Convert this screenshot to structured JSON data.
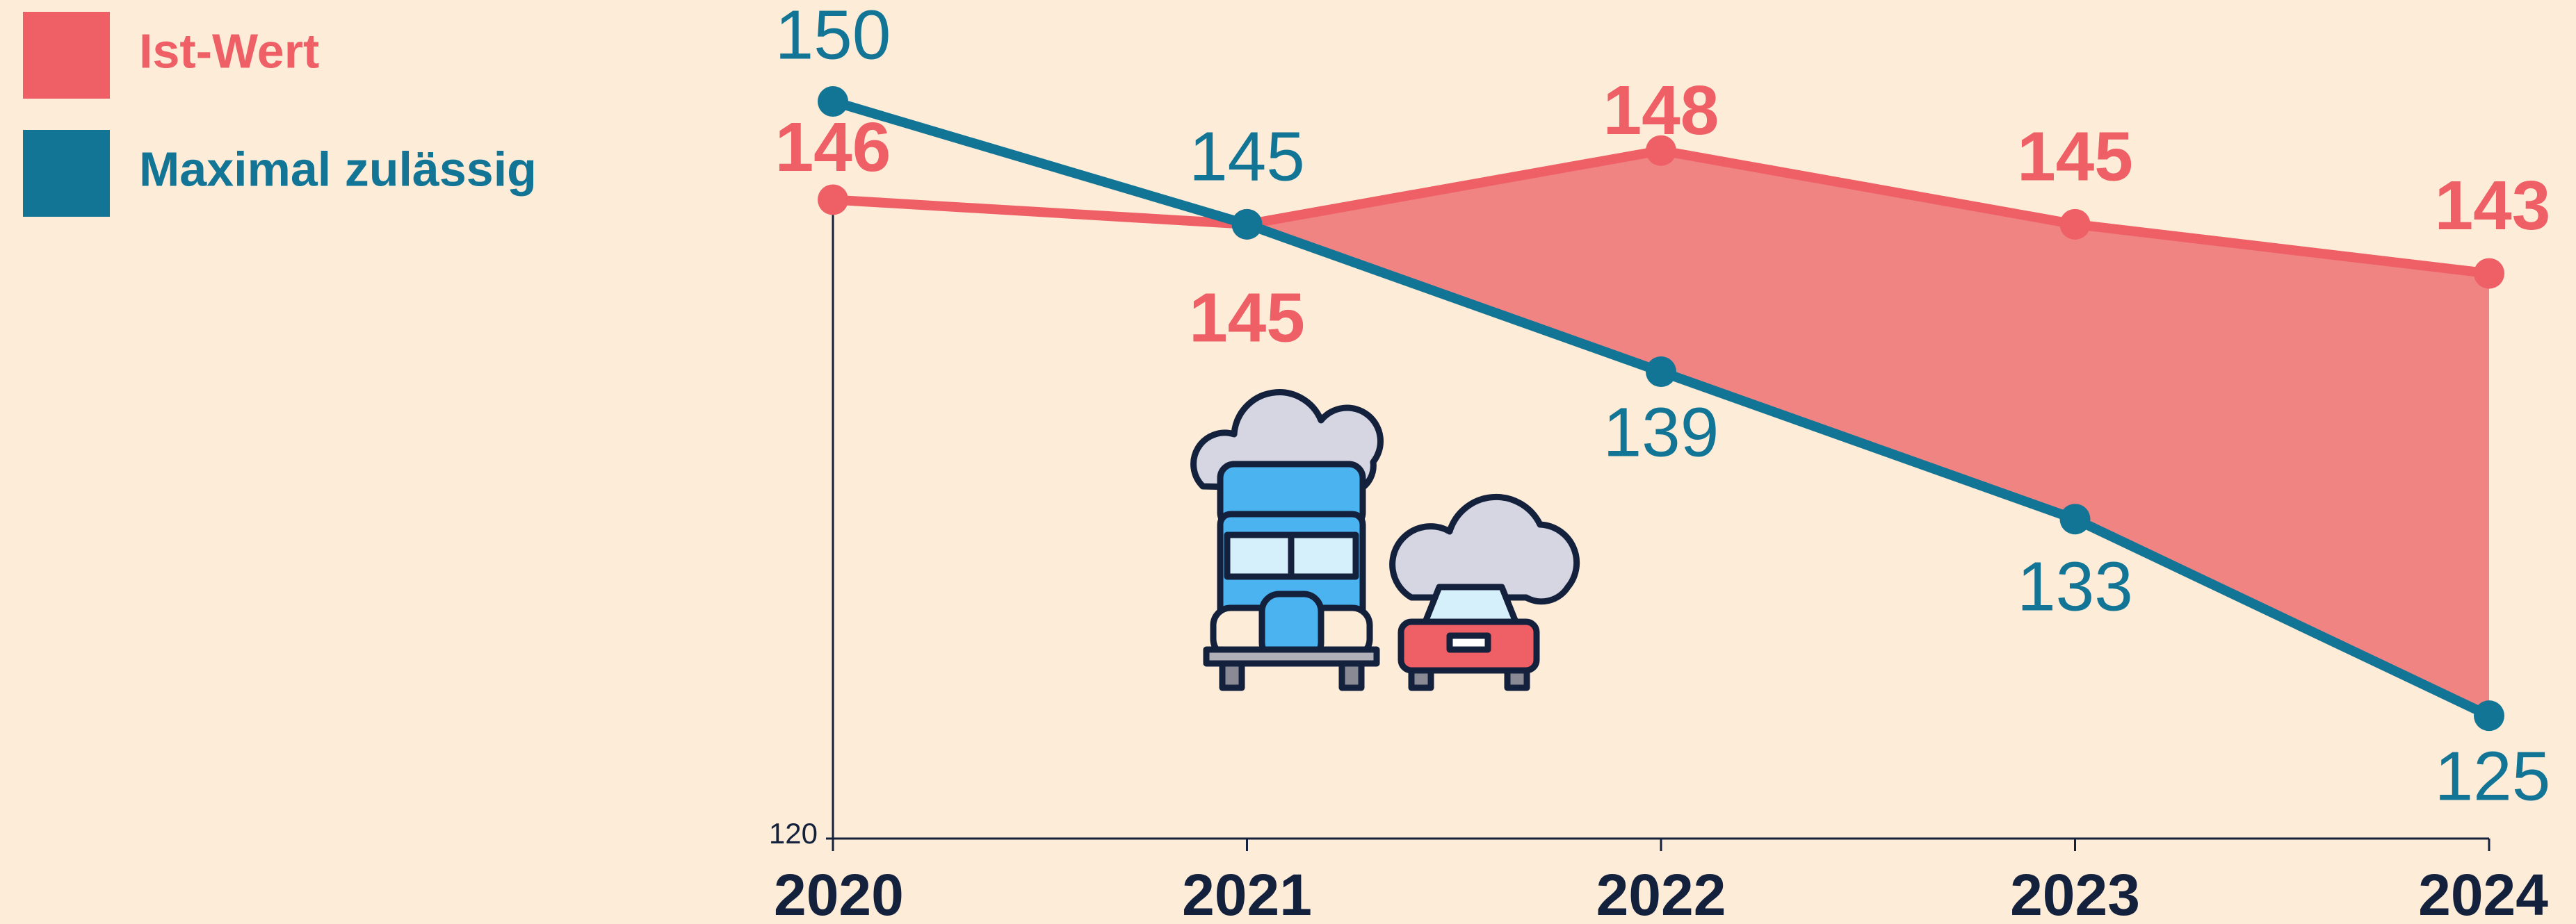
{
  "chart_data": {
    "type": "line",
    "x": [
      2020,
      2021,
      2022,
      2023,
      2024
    ],
    "series": [
      {
        "name": "Ist-Wert",
        "color": "#ee5f66",
        "values": [
          146,
          145,
          148,
          145,
          143
        ]
      },
      {
        "name": "Maximal zulässig",
        "color": "#137596",
        "values": [
          150,
          145,
          139,
          133,
          125
        ]
      }
    ],
    "fill_color": "#f08482",
    "ylim": [
      120,
      150
    ],
    "yticks": [
      120
    ],
    "legend": "top-left"
  }
}
